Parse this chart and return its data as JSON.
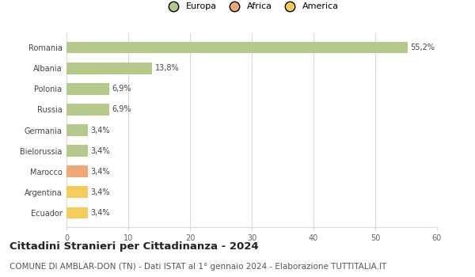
{
  "countries": [
    "Romania",
    "Albania",
    "Polonia",
    "Russia",
    "Germania",
    "Bielorussia",
    "Marocco",
    "Argentina",
    "Ecuador"
  ],
  "values": [
    55.2,
    13.8,
    6.9,
    6.9,
    3.4,
    3.4,
    3.4,
    3.4,
    3.4
  ],
  "labels": [
    "55,2%",
    "13,8%",
    "6,9%",
    "6,9%",
    "3,4%",
    "3,4%",
    "3,4%",
    "3,4%",
    "3,4%"
  ],
  "categories": [
    "Europa",
    "Europa",
    "Europa",
    "Europa",
    "Europa",
    "Europa",
    "Africa",
    "America",
    "America"
  ],
  "colors": {
    "Europa": "#b5c98a",
    "Africa": "#f0a878",
    "America": "#f5cc5a"
  },
  "legend_items": [
    "Europa",
    "Africa",
    "America"
  ],
  "legend_colors": [
    "#b5c98a",
    "#f0a878",
    "#f5cc5a"
  ],
  "title": "Cittadini Stranieri per Cittadinanza - 2024",
  "subtitle": "COMUNE DI AMBLAR-DON (TN) - Dati ISTAT al 1° gennaio 2024 - Elaborazione TUTTITALIA.IT",
  "xlim": [
    0,
    60
  ],
  "xticks": [
    0,
    10,
    20,
    30,
    40,
    50,
    60
  ],
  "background_color": "#ffffff",
  "grid_color": "#d8d8d8",
  "title_fontsize": 9.5,
  "subtitle_fontsize": 7.5,
  "label_fontsize": 7,
  "tick_fontsize": 7,
  "legend_fontsize": 8
}
